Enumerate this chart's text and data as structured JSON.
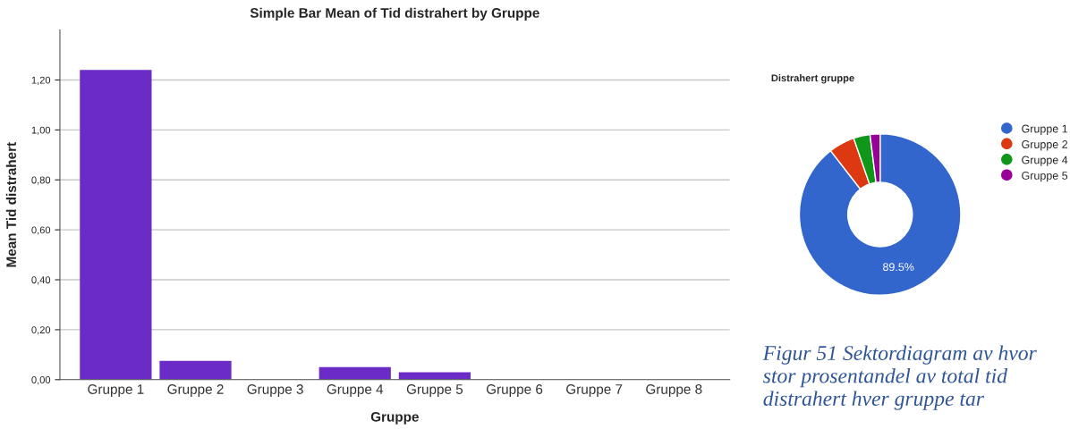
{
  "chart_data": [
    {
      "type": "bar",
      "title": "Simple Bar Mean of Tid distrahert by Gruppe",
      "xlabel": "Gruppe",
      "ylabel": "Mean Tid distrahert",
      "categories": [
        "Gruppe 1",
        "Gruppe 2",
        "Gruppe 3",
        "Gruppe 4",
        "Gruppe 5",
        "Gruppe 6",
        "Gruppe 7",
        "Gruppe 8"
      ],
      "values": [
        1.24,
        0.075,
        0,
        0.05,
        0.03,
        0,
        0,
        0
      ],
      "color": "#6a2bc7",
      "ylim": [
        0,
        1.4
      ],
      "yticks": [
        {
          "value": 0,
          "label": "0,00"
        },
        {
          "value": 0.2,
          "label": "0,20"
        },
        {
          "value": 0.4,
          "label": "0,40"
        },
        {
          "value": 0.6,
          "label": "0,60"
        },
        {
          "value": 0.8,
          "label": "0,80"
        },
        {
          "value": 1.0,
          "label": "1,00"
        },
        {
          "value": 1.2,
          "label": "1,20"
        }
      ],
      "grid": "y",
      "legend": false
    },
    {
      "type": "donut",
      "title": "Distrahert gruppe",
      "categories": [
        "Gruppe 1",
        "Gruppe 2",
        "Gruppe 4",
        "Gruppe 5"
      ],
      "values": [
        89.5,
        5.2,
        3.3,
        2.0
      ],
      "colors": [
        "#3366cc",
        "#dc3912",
        "#109618",
        "#990099"
      ],
      "value_labels": [
        "89.5%",
        null,
        null,
        null
      ],
      "legend": "top right",
      "annotations": [
        "Figur 51 Sektordiagram av hvor stor prosentandel av total tid distrahert hver gruppe tar"
      ]
    }
  ]
}
